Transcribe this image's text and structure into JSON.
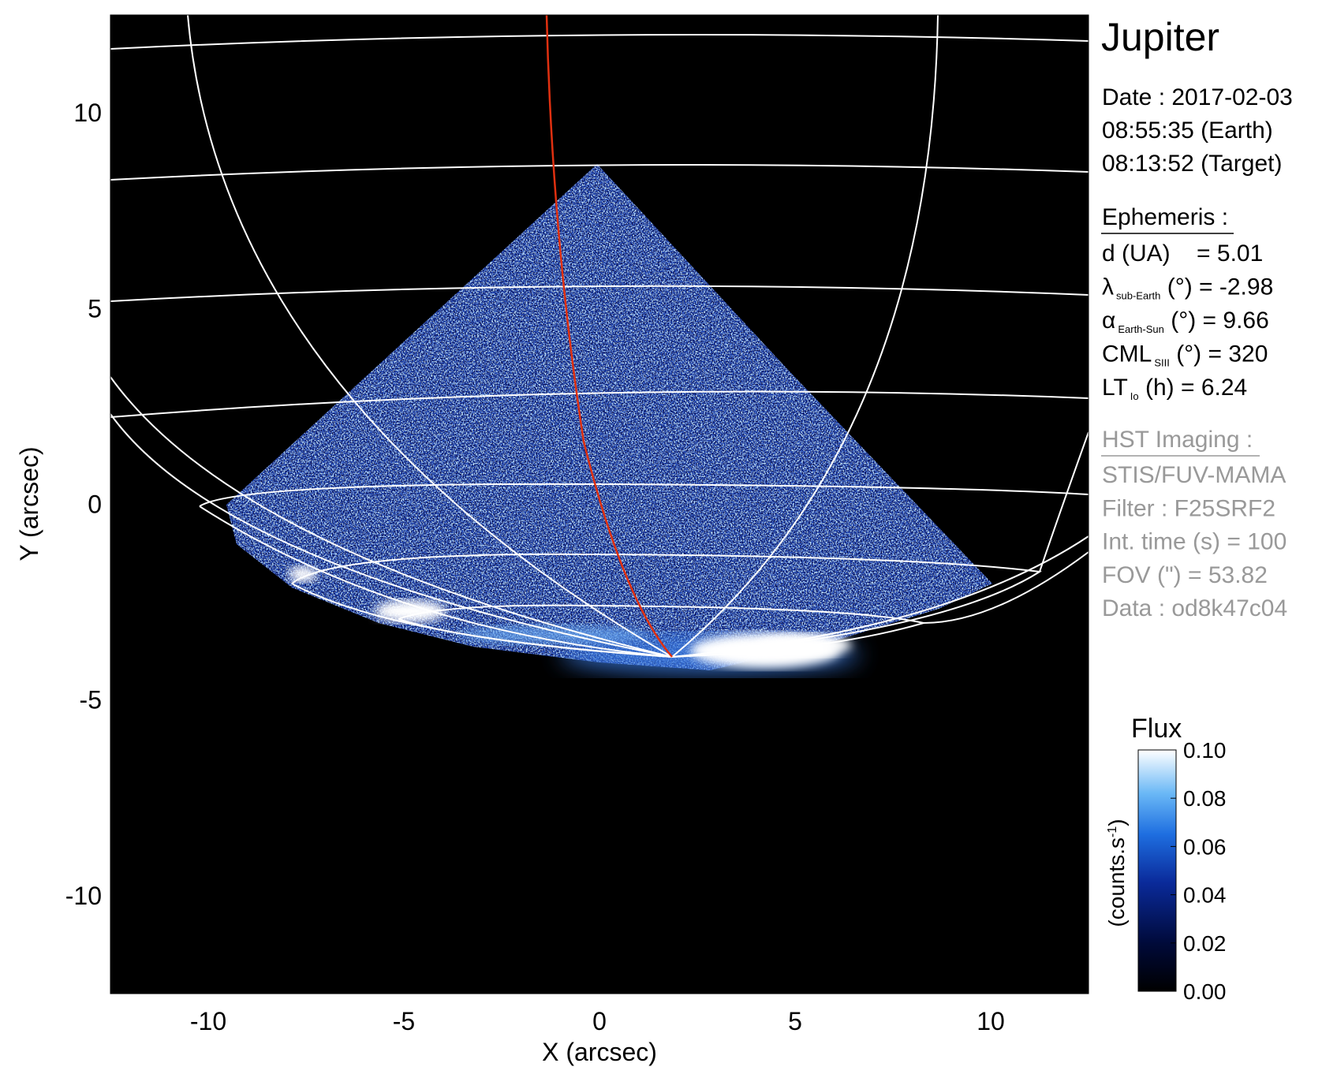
{
  "chart_data": {
    "type": "heatmap",
    "title": "Jupiter",
    "xlabel": "X (arcsec)",
    "ylabel": "Y (arcsec)",
    "xlim": [
      -12.5,
      12.5
    ],
    "ylim": [
      -12.5,
      12.5
    ],
    "x_ticks": [
      "-10",
      "-5",
      "0",
      "5",
      "10"
    ],
    "x_tick_values": [
      -10,
      -5,
      0,
      5,
      10
    ],
    "y_ticks": [
      "10",
      "5",
      "0",
      "-5",
      "-10"
    ],
    "y_tick_values": [
      10,
      5,
      0,
      -5,
      -10
    ],
    "grid": "planetographic latitude/longitude grid (white)",
    "colorbar": {
      "title": "Flux",
      "label": "(counts.s",
      "label_sup": "-1",
      "label_close": ")",
      "range": [
        0.0,
        0.1
      ],
      "ticks": [
        "0.10",
        "0.08",
        "0.06",
        "0.04",
        "0.02",
        "0.00"
      ],
      "tick_values": [
        0.1,
        0.08,
        0.06,
        0.04,
        0.02,
        0.0
      ],
      "colors": [
        "#000000",
        "#000a3a",
        "#0a2a9a",
        "#1e6ee0",
        "#6ab8f6",
        "#ffffff"
      ]
    },
    "colors": {
      "grid": "#ffffff",
      "footprint_line": "#e03010",
      "emission": "#2a5ad0",
      "background": "#000000"
    }
  },
  "info": {
    "planet": "Jupiter",
    "date": "Date : 2017-02-03",
    "time_earth": "08:55:35 (Earth)",
    "time_target": "08:13:52 (Target)",
    "ephemeris_header": "Ephemeris :",
    "ephemeris": [
      {
        "sym": "d (UA)",
        "sub": "",
        "rest": "    = 5.01"
      },
      {
        "sym": "λ",
        "sub": "sub-Earth",
        "rest": " (°) = -2.98"
      },
      {
        "sym": "α",
        "sub": "Earth-Sun",
        "rest": " (°) = 9.66"
      },
      {
        "sym": "CML",
        "sub": "SIII",
        "rest": " (°) = 320"
      },
      {
        "sym": "LT",
        "sub": "Io",
        "rest": " (h) = 6.24"
      }
    ],
    "hst_header": "HST Imaging :",
    "hst": [
      "STIS/FUV-MAMA",
      "Filter : F25SRF2",
      "Int. time (s) = 100",
      "FOV (\") = 53.82",
      "Data : od8k47c04"
    ]
  }
}
